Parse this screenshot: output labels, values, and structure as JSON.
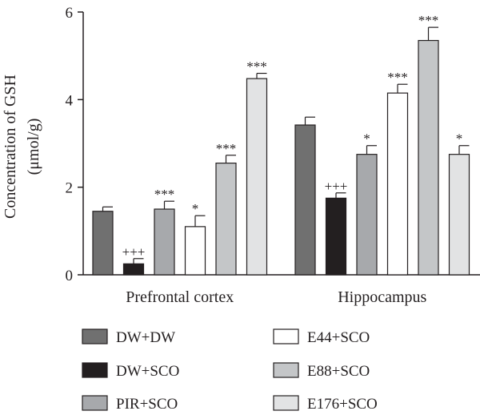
{
  "chart_data": {
    "type": "bar",
    "ylabel": [
      "Concentration of GSH",
      "(μmol/g)"
    ],
    "ylim": [
      0,
      6
    ],
    "yticks": [
      0,
      2,
      4,
      6
    ],
    "grid": false,
    "legend_position": "bottom",
    "categories": [
      "Prefrontal cortex",
      "Hippocampus"
    ],
    "series": [
      {
        "name": "DW+DW",
        "color": "#707070",
        "values": [
          1.45,
          3.42
        ],
        "errors": [
          0.1,
          0.18
        ],
        "annotations": [
          "",
          ""
        ]
      },
      {
        "name": "DW+SCO",
        "color": "#231f20",
        "values": [
          0.25,
          1.75
        ],
        "errors": [
          0.12,
          0.12
        ],
        "annotations": [
          "+++",
          "+++"
        ]
      },
      {
        "name": "PIR+SCO",
        "color": "#a7a9ac",
        "values": [
          1.5,
          2.75
        ],
        "errors": [
          0.18,
          0.2
        ],
        "annotations": [
          "***",
          "*"
        ]
      },
      {
        "name": "E44+SCO",
        "color": "#ffffff",
        "values": [
          1.1,
          4.15
        ],
        "errors": [
          0.25,
          0.2
        ],
        "annotations": [
          "*",
          "***"
        ]
      },
      {
        "name": "E88+SCO",
        "color": "#c4c6c8",
        "values": [
          2.55,
          5.35
        ],
        "errors": [
          0.18,
          0.3
        ],
        "annotations": [
          "***",
          "***"
        ]
      },
      {
        "name": "E176+SCO",
        "color": "#e2e3e4",
        "values": [
          4.48,
          2.75
        ],
        "errors": [
          0.12,
          0.2
        ],
        "annotations": [
          "***",
          "*"
        ]
      }
    ]
  }
}
